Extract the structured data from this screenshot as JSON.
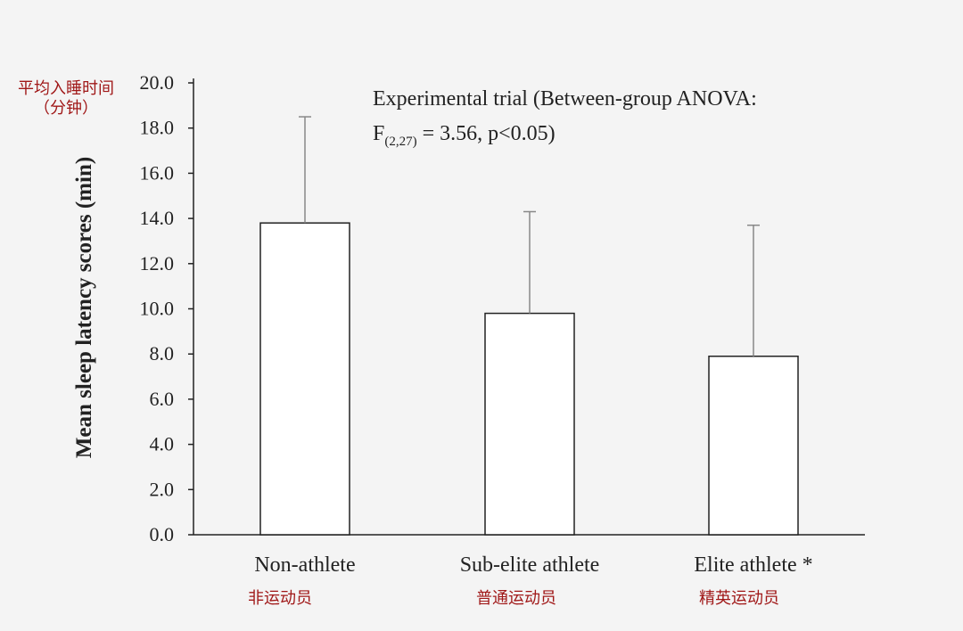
{
  "chart_data": {
    "type": "bar",
    "categories": [
      "Non-athlete",
      "Sub-elite athlete",
      "Elite athlete *"
    ],
    "categories_cn": [
      "非运动员",
      "普通运动员",
      "精英运动员"
    ],
    "values": [
      13.8,
      9.8,
      7.9
    ],
    "error_upper": [
      18.5,
      14.3,
      13.7
    ],
    "ylabel": "Mean sleep latency scores (min)",
    "ylabel_cn_line1": "平均入睡时间",
    "ylabel_cn_line2": "（分钟）",
    "ylim": [
      0,
      20
    ],
    "yticks": [
      "0.0",
      "2.0",
      "4.0",
      "6.0",
      "8.0",
      "10.0",
      "12.0",
      "14.0",
      "16.0",
      "18.0",
      "20.0"
    ],
    "annotation_line1": "Experimental trial (Between-group ANOVA:",
    "annotation_line2_prefix": "F",
    "annotation_line2_sub": "(2,27)",
    "annotation_line2_suffix": " = 3.56, p<0.05)",
    "colors": {
      "bar_fill": "#ffffff",
      "stroke": "#222222",
      "error_bar": "#888888",
      "cn_text": "#a01818"
    }
  }
}
